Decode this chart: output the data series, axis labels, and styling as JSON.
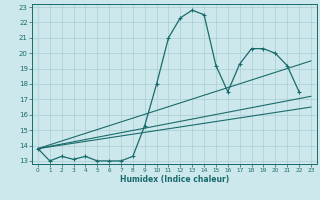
{
  "xlabel": "Humidex (Indice chaleur)",
  "bg_color": "#cce8ec",
  "grid_color": "#aacfd4",
  "line_color": "#1a6b6b",
  "xlim": [
    -0.5,
    23.5
  ],
  "ylim": [
    12.8,
    23.2
  ],
  "xticks": [
    0,
    1,
    2,
    3,
    4,
    5,
    6,
    7,
    8,
    9,
    10,
    11,
    12,
    13,
    14,
    15,
    16,
    17,
    18,
    19,
    20,
    21,
    22,
    23
  ],
  "yticks": [
    13,
    14,
    15,
    16,
    17,
    18,
    19,
    20,
    21,
    22,
    23
  ],
  "x_main": [
    0,
    1,
    2,
    3,
    4,
    5,
    6,
    7,
    8,
    9,
    10,
    11,
    12,
    13,
    14,
    15,
    16,
    17,
    18,
    19,
    20,
    21,
    22
  ],
  "y_main": [
    13.8,
    13.0,
    13.3,
    13.1,
    13.3,
    13.0,
    13.0,
    13.0,
    13.3,
    15.3,
    18.0,
    21.0,
    22.3,
    22.8,
    22.5,
    19.2,
    17.5,
    19.3,
    20.3,
    20.3,
    20.0,
    19.2,
    17.5
  ],
  "trend_lines": [
    {
      "x": [
        0,
        23
      ],
      "y": [
        13.8,
        16.5
      ]
    },
    {
      "x": [
        0,
        23
      ],
      "y": [
        13.8,
        17.2
      ]
    },
    {
      "x": [
        0,
        23
      ],
      "y": [
        13.8,
        19.5
      ]
    }
  ],
  "tick_fontsize": 5,
  "xlabel_fontsize": 5.5
}
